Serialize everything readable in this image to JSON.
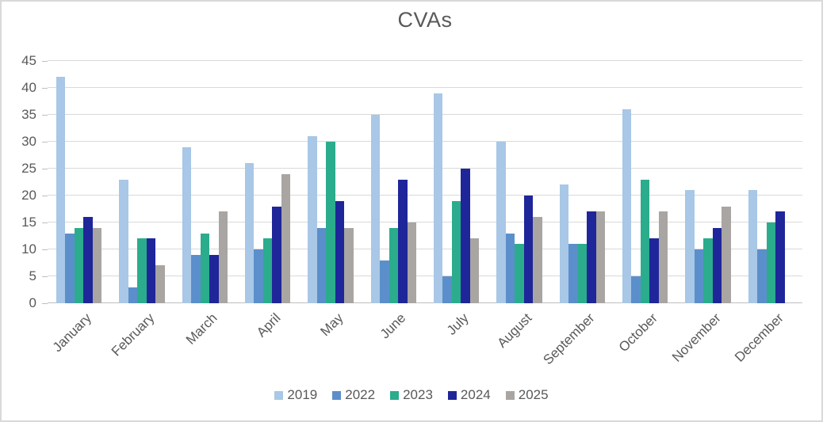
{
  "title": "CVAs",
  "chart_data": {
    "type": "bar",
    "title": "CVAs",
    "xlabel": "",
    "ylabel": "",
    "ylim": [
      0,
      45
    ],
    "ytick_step": 5,
    "yticks": [
      0,
      5,
      10,
      15,
      20,
      25,
      30,
      35,
      40,
      45
    ],
    "grid": true,
    "legend_position": "bottom",
    "categories": [
      "January",
      "February",
      "March",
      "April",
      "May",
      "June",
      "July",
      "August",
      "September",
      "October",
      "November",
      "December"
    ],
    "series": [
      {
        "name": "2019",
        "color": "#a9c7e6",
        "values": [
          42,
          23,
          29,
          26,
          31,
          35,
          39,
          30,
          22,
          36,
          21,
          21
        ]
      },
      {
        "name": "2022",
        "color": "#5b8fcb",
        "values": [
          13,
          3,
          9,
          10,
          14,
          8,
          5,
          13,
          11,
          5,
          10,
          10
        ]
      },
      {
        "name": "2023",
        "color": "#2bac8c",
        "values": [
          14,
          12,
          13,
          12,
          30,
          14,
          19,
          11,
          11,
          23,
          12,
          15
        ]
      },
      {
        "name": "2024",
        "color": "#1f2699",
        "values": [
          16,
          12,
          9,
          18,
          19,
          23,
          25,
          20,
          17,
          12,
          14,
          17
        ]
      },
      {
        "name": "2025",
        "color": "#a8a5a3",
        "values": [
          14,
          7,
          17,
          24,
          14,
          15,
          12,
          16,
          17,
          17,
          18,
          null
        ]
      }
    ]
  },
  "colors": {
    "title_text": "#595959",
    "axis_text": "#595959",
    "gridline": "#d9d9d9",
    "axis_line": "#bfbfbf",
    "chart_border": "#d9d9d9",
    "background": "#ffffff"
  }
}
